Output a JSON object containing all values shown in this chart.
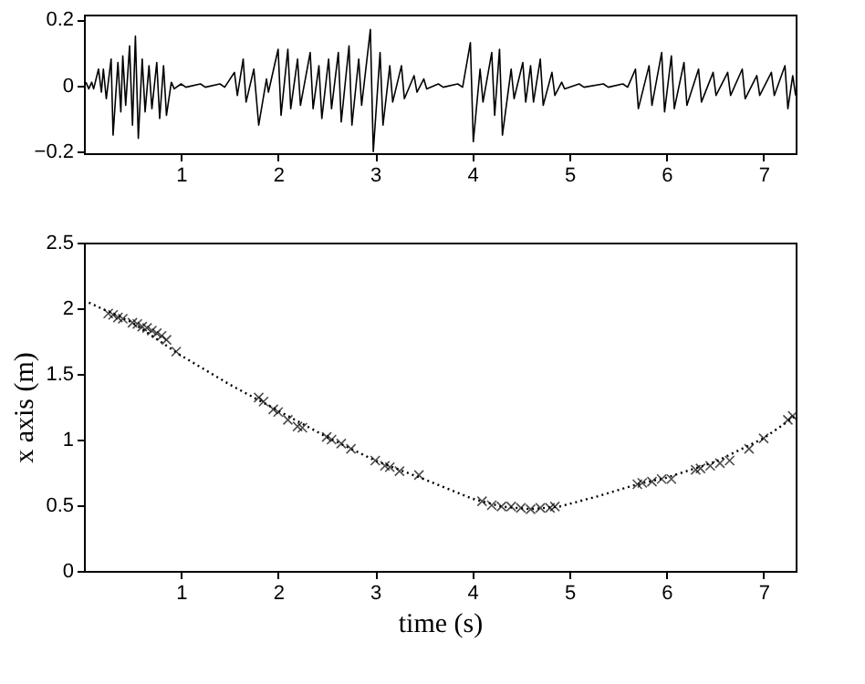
{
  "chart_data": [
    {
      "type": "line",
      "color": "#000000",
      "xlim": [
        0,
        7.33
      ],
      "ylim": [
        -0.205,
        0.215
      ],
      "xticks": [
        1,
        2,
        3,
        4,
        5,
        6,
        7
      ],
      "yticks": [
        -0.2,
        0,
        0.2
      ],
      "grid": false,
      "x": [
        0.02,
        0.05,
        0.08,
        0.1,
        0.15,
        0.18,
        0.2,
        0.23,
        0.28,
        0.3,
        0.35,
        0.38,
        0.4,
        0.43,
        0.47,
        0.5,
        0.53,
        0.56,
        0.6,
        0.63,
        0.67,
        0.7,
        0.75,
        0.78,
        0.82,
        0.85,
        0.9,
        0.93,
        1.0,
        1.05,
        1.2,
        1.25,
        1.4,
        1.45,
        1.55,
        1.58,
        1.64,
        1.67,
        1.75,
        1.8,
        1.88,
        1.9,
        2.0,
        2.03,
        2.1,
        2.13,
        2.2,
        2.23,
        2.33,
        2.36,
        2.42,
        2.45,
        2.52,
        2.55,
        2.62,
        2.65,
        2.73,
        2.76,
        2.83,
        2.86,
        2.95,
        2.98,
        3.05,
        3.08,
        3.15,
        3.18,
        3.27,
        3.3,
        3.4,
        3.43,
        3.5,
        3.53,
        3.65,
        3.7,
        3.85,
        3.9,
        3.98,
        4.01,
        4.08,
        4.11,
        4.2,
        4.23,
        4.28,
        4.31,
        4.4,
        4.43,
        4.52,
        4.55,
        4.6,
        4.63,
        4.7,
        4.73,
        4.82,
        4.85,
        4.92,
        4.95,
        5.1,
        5.15,
        5.35,
        5.4,
        5.55,
        5.6,
        5.68,
        5.71,
        5.82,
        5.85,
        5.95,
        5.98,
        6.05,
        6.08,
        6.18,
        6.21,
        6.33,
        6.36,
        6.48,
        6.51,
        6.63,
        6.66,
        6.78,
        6.81,
        6.93,
        6.96,
        7.08,
        7.11,
        7.22,
        7.25,
        7.3,
        7.33
      ],
      "values": [
        0.01,
        -0.01,
        0.01,
        -0.01,
        0.05,
        -0.02,
        0.05,
        -0.04,
        0.08,
        -0.15,
        0.07,
        -0.08,
        0.09,
        -0.06,
        0.12,
        -0.12,
        0.15,
        -0.16,
        0.08,
        -0.08,
        0.06,
        -0.07,
        0.07,
        -0.1,
        0.06,
        -0.09,
        0.01,
        -0.01,
        0.005,
        -0.005,
        0.005,
        -0.005,
        0.005,
        -0.005,
        0.04,
        -0.03,
        0.08,
        -0.05,
        0.05,
        -0.12,
        0.02,
        -0.02,
        0.11,
        -0.09,
        0.11,
        -0.07,
        0.08,
        -0.06,
        0.1,
        -0.07,
        0.06,
        -0.1,
        0.08,
        -0.07,
        0.1,
        -0.11,
        0.12,
        -0.12,
        0.08,
        -0.06,
        0.17,
        -0.2,
        0.1,
        -0.12,
        0.06,
        -0.05,
        0.06,
        -0.04,
        0.03,
        -0.02,
        0.02,
        -0.01,
        0.005,
        -0.005,
        0.005,
        -0.005,
        0.13,
        -0.17,
        0.05,
        -0.05,
        0.1,
        -0.09,
        0.11,
        -0.15,
        0.05,
        -0.04,
        0.07,
        -0.05,
        0.06,
        -0.05,
        0.08,
        -0.06,
        0.04,
        -0.03,
        0.01,
        -0.01,
        0.005,
        -0.005,
        0.005,
        -0.005,
        0.005,
        -0.005,
        0.05,
        -0.07,
        0.06,
        -0.06,
        0.1,
        -0.08,
        0.09,
        -0.07,
        0.07,
        -0.06,
        0.05,
        -0.05,
        0.04,
        -0.03,
        0.04,
        -0.03,
        0.05,
        -0.04,
        0.03,
        -0.03,
        0.04,
        -0.03,
        0.06,
        -0.07,
        0.03,
        -0.03
      ]
    },
    {
      "xlabel": "time (s)",
      "ylabel": "x axis (m)",
      "xlim": [
        0,
        7.33
      ],
      "ylim": [
        0,
        2.5
      ],
      "xticks": [
        1,
        2,
        3,
        4,
        5,
        6,
        7
      ],
      "yticks": [
        0,
        0.5,
        1,
        1.5,
        2,
        2.5
      ],
      "type": "line",
      "grid": false,
      "series": [
        {
          "type": "line",
          "line_style": "dotted",
          "marker": "none",
          "color": "#000000",
          "x": [
            0,
            0.5,
            1,
            1.5,
            2,
            2.5,
            3,
            3.5,
            4,
            4.3,
            4.6,
            4.9,
            5.3,
            5.7,
            6,
            6.5,
            7,
            7.33
          ],
          "values": [
            2.06,
            1.89,
            1.64,
            1.42,
            1.22,
            1.02,
            0.84,
            0.7,
            0.55,
            0.49,
            0.47,
            0.49,
            0.57,
            0.66,
            0.71,
            0.83,
            1.01,
            1.18
          ]
        },
        {
          "type": "scatter",
          "marker": "cross",
          "color": "#000000",
          "x": [
            0.25,
            0.3,
            0.35,
            0.4,
            0.5,
            0.55,
            0.6,
            0.65,
            0.7,
            0.75,
            0.8,
            0.85,
            0.95,
            1.8,
            1.85,
            1.95,
            2.0,
            2.1,
            2.2,
            2.25,
            2.5,
            2.55,
            2.65,
            2.75,
            3.0,
            3.1,
            3.15,
            3.25,
            3.45,
            4.1,
            4.2,
            4.3,
            4.4,
            4.5,
            4.6,
            4.7,
            4.8,
            4.85,
            5.7,
            5.75,
            5.85,
            5.95,
            6.05,
            6.3,
            6.35,
            6.45,
            6.55,
            6.65,
            6.85,
            7.0,
            7.25,
            7.3
          ],
          "values": [
            1.96,
            1.95,
            1.93,
            1.92,
            1.89,
            1.88,
            1.86,
            1.85,
            1.83,
            1.81,
            1.79,
            1.76,
            1.67,
            1.32,
            1.29,
            1.23,
            1.21,
            1.15,
            1.1,
            1.09,
            1.02,
            1.0,
            0.97,
            0.93,
            0.84,
            0.8,
            0.79,
            0.76,
            0.73,
            0.53,
            0.5,
            0.49,
            0.49,
            0.48,
            0.47,
            0.48,
            0.48,
            0.49,
            0.66,
            0.67,
            0.68,
            0.7,
            0.7,
            0.77,
            0.78,
            0.8,
            0.82,
            0.84,
            0.93,
            1.01,
            1.15,
            1.18
          ]
        }
      ]
    }
  ]
}
